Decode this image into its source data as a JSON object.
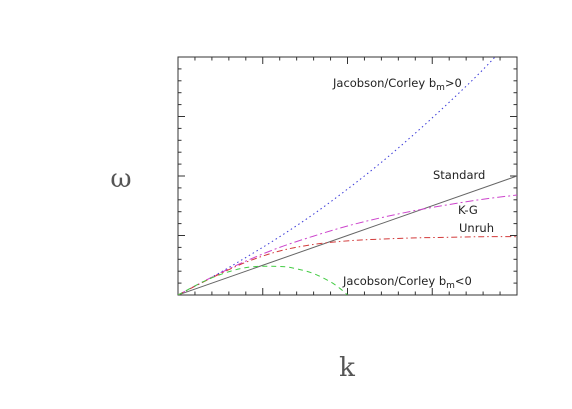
{
  "chart_data": {
    "type": "line",
    "title": "",
    "xlabel": "k",
    "ylabel": "ω",
    "xlim": [
      0,
      10
    ],
    "ylim": [
      0,
      4
    ],
    "x_ticks": [
      0,
      2.5,
      5,
      7.5,
      10
    ],
    "x_minor_per_major": 5,
    "y_ticks": [
      0,
      1,
      2,
      3,
      4
    ],
    "y_minor_per_major": 5,
    "tick_labels_shown": false,
    "grid": false,
    "legend": "none",
    "series": [
      {
        "key": "jc_pos",
        "label_parts": [
          "Jacobson/Corley b",
          "m",
          ">0"
        ],
        "color": "#3b3bd9",
        "dash": "1.5,3",
        "x": [
          0,
          1,
          2,
          3,
          4,
          5,
          6,
          7,
          8,
          9,
          10
        ],
        "y": [
          0,
          0.3,
          0.63,
          0.98,
          1.36,
          1.78,
          2.23,
          2.72,
          3.24,
          3.79,
          4.4
        ]
      },
      {
        "key": "standard",
        "label_parts": [
          "Standard"
        ],
        "color": "#666666",
        "dash": "",
        "x": [
          0,
          10
        ],
        "y": [
          0,
          2.0
        ]
      },
      {
        "key": "kg",
        "label_parts": [
          "K-G"
        ],
        "color": "#cc44cc",
        "dash": "8,3,2,3",
        "x": [
          0,
          1,
          2,
          3,
          4,
          5,
          6,
          7,
          8,
          9,
          10
        ],
        "y": [
          0,
          0.3,
          0.57,
          0.8,
          0.99,
          1.16,
          1.3,
          1.42,
          1.52,
          1.61,
          1.68
        ]
      },
      {
        "key": "unruh",
        "label_parts": [
          "Unruh"
        ],
        "color": "#d23a3a",
        "dash": "6,3,1.5,3",
        "x": [
          0,
          1,
          2,
          3,
          4,
          5,
          6,
          7,
          8,
          9,
          10
        ],
        "y": [
          0,
          0.29,
          0.55,
          0.74,
          0.85,
          0.91,
          0.94,
          0.96,
          0.97,
          0.98,
          0.98
        ]
      },
      {
        "key": "jc_neg",
        "label_parts": [
          "Jacobson/Corley b",
          "m",
          "<0"
        ],
        "color": "#44cc44",
        "dash": "5,4",
        "x": [
          0,
          1,
          2,
          3,
          3.5,
          4,
          4.5,
          4.8,
          5.0
        ],
        "y": [
          0,
          0.29,
          0.46,
          0.48,
          0.44,
          0.36,
          0.22,
          0.1,
          0
        ]
      }
    ]
  }
}
